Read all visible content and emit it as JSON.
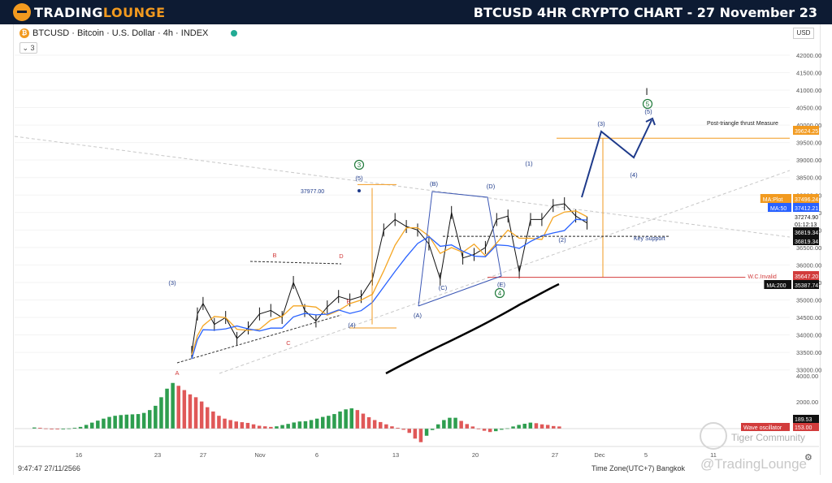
{
  "header": {
    "brand_part1": "TRADING",
    "brand_part2": "LOUNGE",
    "headline": "BTCUSD 4HR CRYPTO CHART - 27 November 23"
  },
  "chart_header": {
    "symbol_icon": "₿",
    "symbol_text": "BTCUSD · Bitcoin · U.S. Dollar · 4h · INDEX",
    "collapse_label": "⌄ 3",
    "currency_label": "USD"
  },
  "footer": {
    "time": "9:47:47 27/11/2566",
    "timezone": "Time Zone(UTC+7) Bangkok",
    "gear_icon": "⚙",
    "community": "Tiger Community",
    "watermark": "@TradingLounge"
  },
  "colors": {
    "header_bg": "#0d1b33",
    "brand_orange": "#f29a1f",
    "wave_blue": "#1e3a8a",
    "wave_green": "#1f7a3a",
    "bear_red": "#d23c3c",
    "ma_blue": "#2962ff",
    "ma_orange": "#f5a623",
    "osc_green": "#2e9e4f",
    "osc_red": "#e05858"
  },
  "chart_data": [
    {
      "type": "line",
      "title": "",
      "y_axis_ticks": [
        "42000.00",
        "41500.00",
        "41000.00",
        "40500.00",
        "40000.00",
        "39500.00",
        "39000.00",
        "38500.00",
        "38000.00",
        "37500.00",
        "37000.00",
        "36500.00",
        "36000.00",
        "35500.00",
        "35000.00",
        "34500.00",
        "34000.00",
        "33500.00",
        "33000.00"
      ],
      "x_axis_ticks": [
        "16",
        "23",
        "27",
        "Nov",
        "6",
        "13",
        "20",
        "27",
        "Dec",
        "5",
        "11"
      ],
      "ylim": [
        32900,
        42300
      ],
      "series": [
        {
          "values": [
            {
              "x": "2023-10-23 00:00",
              "y": 33500
            },
            {
              "x": "2023-10-23 12:00",
              "y": 34600
            },
            {
              "x": "2023-10-24 00:00",
              "y": 34900
            },
            {
              "x": "2023-10-25 00:00",
              "y": 34300
            },
            {
              "x": "2023-10-26 00:00",
              "y": 34500
            },
            {
              "x": "2023-10-27 00:00",
              "y": 33900
            },
            {
              "x": "2023-10-28 00:00",
              "y": 34200
            },
            {
              "x": "2023-10-29 00:00",
              "y": 34600
            },
            {
              "x": "2023-10-30 00:00",
              "y": 34700
            },
            {
              "x": "2023-10-31 00:00",
              "y": 34500
            },
            {
              "x": "2023-11-01 00:00",
              "y": 35500
            },
            {
              "x": "2023-11-02 00:00",
              "y": 34700
            },
            {
              "x": "2023-11-03 00:00",
              "y": 34400
            },
            {
              "x": "2023-11-04 00:00",
              "y": 34800
            },
            {
              "x": "2023-11-05 00:00",
              "y": 35100
            },
            {
              "x": "2023-11-06 00:00",
              "y": 35000
            },
            {
              "x": "2023-11-07 00:00",
              "y": 35100
            },
            {
              "x": "2023-11-08 00:00",
              "y": 35600
            },
            {
              "x": "2023-11-09 00:00",
              "y": 37000
            },
            {
              "x": "2023-11-10 00:00",
              "y": 37300
            },
            {
              "x": "2023-11-11 00:00",
              "y": 37100
            },
            {
              "x": "2023-11-12 00:00",
              "y": 37000
            },
            {
              "x": "2023-11-13 00:00",
              "y": 36600
            },
            {
              "x": "2023-11-14 00:00",
              "y": 35600
            },
            {
              "x": "2023-11-15 00:00",
              "y": 37500
            },
            {
              "x": "2023-11-16 00:00",
              "y": 36200
            },
            {
              "x": "2023-11-17 00:00",
              "y": 36300
            },
            {
              "x": "2023-11-18 00:00",
              "y": 36500
            },
            {
              "x": "2023-11-19 00:00",
              "y": 37300
            },
            {
              "x": "2023-11-20 00:00",
              "y": 37400
            },
            {
              "x": "2023-11-21 00:00",
              "y": 35800
            },
            {
              "x": "2023-11-22 00:00",
              "y": 37300
            },
            {
              "x": "2023-11-23 00:00",
              "y": 37300
            },
            {
              "x": "2023-11-24 00:00",
              "y": 37700
            },
            {
              "x": "2023-11-25 00:00",
              "y": 37750
            },
            {
              "x": "2023-11-26 00:00",
              "y": 37400
            },
            {
              "x": "2023-11-27 00:00",
              "y": 37200
            }
          ]
        }
      ]
    },
    {
      "type": "bar",
      "title": "Wave oscillator",
      "value_label": "153.00",
      "other_label": "189.53",
      "y_axis_ticks": [
        "4000.00",
        "2000.00"
      ],
      "values": [
        80,
        60,
        20,
        -10,
        -30,
        -10,
        20,
        60,
        120,
        260,
        420,
        560,
        700,
        820,
        900,
        950,
        980,
        1000,
        1020,
        1100,
        1300,
        1600,
        2200,
        2800,
        3200,
        3000,
        2700,
        2400,
        2200,
        1900,
        1500,
        1200,
        900,
        700,
        600,
        500,
        450,
        400,
        300,
        200,
        160,
        120,
        160,
        250,
        330,
        430,
        500,
        520,
        600,
        700,
        820,
        900,
        1020,
        1200,
        1350,
        1420,
        1300,
        1050,
        800,
        600,
        460,
        300,
        160,
        60,
        -80,
        -300,
        -700,
        -950,
        -500,
        -100,
        300,
        600,
        760,
        760,
        540,
        320,
        150,
        10,
        -150,
        -240,
        -180,
        -80,
        30,
        150,
        260,
        340,
        420,
        380,
        300,
        260,
        180,
        150
      ]
    }
  ],
  "price_labels": [
    {
      "text": "39624.25",
      "kind": "orange"
    },
    {
      "text": "37496.24",
      "kind": "orange",
      "tag": "MA:Plot"
    },
    {
      "text": "37412.21",
      "kind": "blue",
      "tag": "MA:50"
    },
    {
      "text": "37274.90",
      "kind": "light"
    },
    {
      "text": "01:12:13",
      "kind": "light"
    },
    {
      "text": "36819.34",
      "kind": "dark"
    },
    {
      "text": "36819.34",
      "kind": "dark"
    },
    {
      "text": "35647.20",
      "kind": "red",
      "tag": "W.C.Invalid"
    },
    {
      "text": "35387.74",
      "kind": "dark",
      "tag": "MA:200"
    }
  ],
  "annotations": {
    "post_triangle": "Post-triangle thrust Measure",
    "key_support": "Key Support",
    "price_37977": "37977.00",
    "wave_labels": [
      "(3)",
      "(5)",
      "(4)",
      "(3)",
      "(4)",
      "(5)",
      "(1)",
      "(2)",
      "(A)",
      "(B)",
      "(C)",
      "(D)",
      "(E)",
      "B",
      "C",
      "D",
      "E",
      "A"
    ],
    "green_circles": [
      "3",
      "4",
      "5"
    ],
    "marker_i": "I"
  }
}
